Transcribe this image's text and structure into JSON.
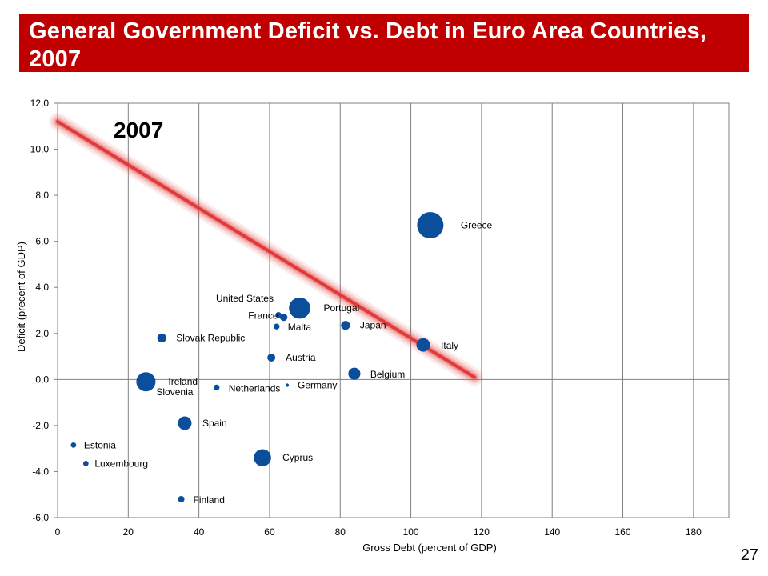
{
  "slide": {
    "title": "General Government Deficit vs. Debt in Euro Area Countries, 2007",
    "page_number": "27",
    "title_bar_color": "#c00000"
  },
  "chart_data": {
    "type": "scatter",
    "title": "2007",
    "xlabel": "Gross Debt  (percent of GDP)",
    "ylabel": "Deficit  (precent of GDP)",
    "xlim": [
      0,
      190
    ],
    "ylim": [
      -6,
      12
    ],
    "xticks": [
      0,
      20,
      40,
      60,
      80,
      100,
      120,
      140,
      160,
      180
    ],
    "yticks": [
      -6,
      -4,
      -2,
      0,
      2,
      4,
      6,
      8,
      10,
      12
    ],
    "ytick_labels": [
      "-6,0",
      "-4,0",
      "-2,0",
      "0,0",
      "2,0",
      "4,0",
      "6,0",
      "8,0",
      "10,0",
      "12,0"
    ],
    "grid": "vertical",
    "marker_color": "#0b4f9c",
    "trend_line": {
      "color": "#e03a3a",
      "x": [
        0,
        118
      ],
      "y": [
        11.2,
        0.1
      ]
    },
    "points": [
      {
        "label": "Greece",
        "x": 105.5,
        "y": 6.7,
        "size": 5
      },
      {
        "label": "Portugal",
        "x": 68.5,
        "y": 3.1,
        "size": 4
      },
      {
        "label": "United States",
        "x": 62.5,
        "y": 2.8,
        "size": 1
      },
      {
        "label": "France",
        "x": 64,
        "y": 2.7,
        "size": 1.3
      },
      {
        "label": "Malta",
        "x": 62,
        "y": 2.3,
        "size": 1
      },
      {
        "label": "Japan",
        "x": 81.5,
        "y": 2.35,
        "size": 1.6
      },
      {
        "label": "Slovak Republic",
        "x": 29.5,
        "y": 1.8,
        "size": 1.6
      },
      {
        "label": "Italy",
        "x": 103.5,
        "y": 1.5,
        "size": 2.5
      },
      {
        "label": "Austria",
        "x": 60.5,
        "y": 0.95,
        "size": 1.4
      },
      {
        "label": "Belgium",
        "x": 84,
        "y": 0.25,
        "size": 2.2
      },
      {
        "label": "Ireland",
        "x": 25,
        "y": -0.1,
        "size": 3.6
      },
      {
        "label": "Slovenia",
        "x": 25,
        "y": -0.1,
        "size": 0
      },
      {
        "label": "Netherlands",
        "x": 45,
        "y": -0.35,
        "size": 1
      },
      {
        "label": "Germany",
        "x": 65,
        "y": -0.25,
        "size": 0.5
      },
      {
        "label": "Spain",
        "x": 36,
        "y": -1.9,
        "size": 2.5
      },
      {
        "label": "Estonia",
        "x": 4.5,
        "y": -2.85,
        "size": 0.9
      },
      {
        "label": "Luxembourg",
        "x": 8,
        "y": -3.65,
        "size": 0.9
      },
      {
        "label": "Cyprus",
        "x": 58,
        "y": -3.4,
        "size": 3.2
      },
      {
        "label": "Finland",
        "x": 35,
        "y": -5.2,
        "size": 1.1
      }
    ]
  }
}
